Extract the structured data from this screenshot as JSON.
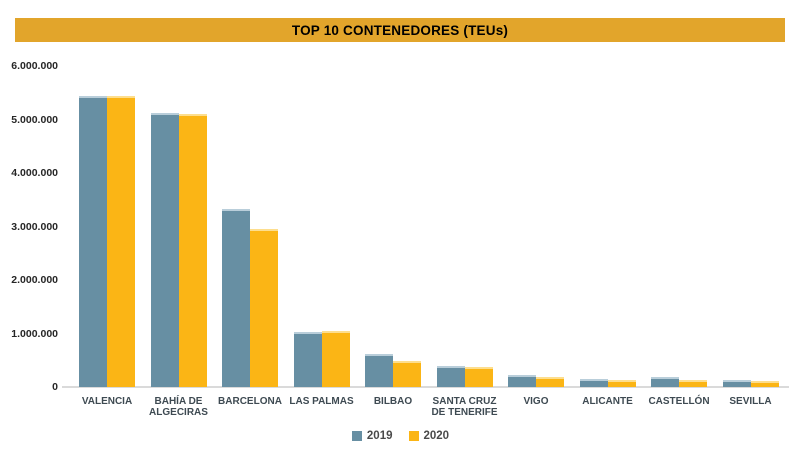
{
  "header": {
    "title": "TOP 10 CONTENEDORES (TEUs)",
    "bg_color": "#E2A52B",
    "text_color": "#000000"
  },
  "colors": {
    "background": "#FFFFFF",
    "axis_line": "#DADADA",
    "y_tick_text": "#262626",
    "category_text": "#3E4A52",
    "legend_text": "#4A4A4A"
  },
  "chart_data": {
    "type": "bar",
    "title": "TOP 10 CONTENEDORES (TEUs)",
    "xlabel": "",
    "ylabel": "",
    "ylim": [
      0,
      6000000
    ],
    "y_tick_step": 1000000,
    "y_tick_labels": [
      "0",
      "1.000.000",
      "2.000.000",
      "3.000.000",
      "4.000.000",
      "5.000.000",
      "6.000.000"
    ],
    "grid": false,
    "legend_position": "bottom",
    "categories": [
      "VALENCIA",
      "BAHÍA DE ALGECIRAS",
      "BARCELONA",
      "LAS PALMAS",
      "BILBAO",
      "SANTA CRUZ DE TENERIFE",
      "VIGO",
      "ALICANTE",
      "CASTELLÓN",
      "SEVILLA"
    ],
    "series": [
      {
        "name": "2019",
        "color": "#678FA3",
        "edge_color": "#B9CEDA",
        "values": [
          5440000,
          5120000,
          3320000,
          1020000,
          620000,
          400000,
          220000,
          155000,
          195000,
          140000
        ]
      },
      {
        "name": "2020",
        "color": "#FBB515",
        "edge_color": "#FDDE8E",
        "values": [
          5430000,
          5100000,
          2950000,
          1040000,
          490000,
          370000,
          195000,
          135000,
          140000,
          120000
        ]
      }
    ]
  }
}
